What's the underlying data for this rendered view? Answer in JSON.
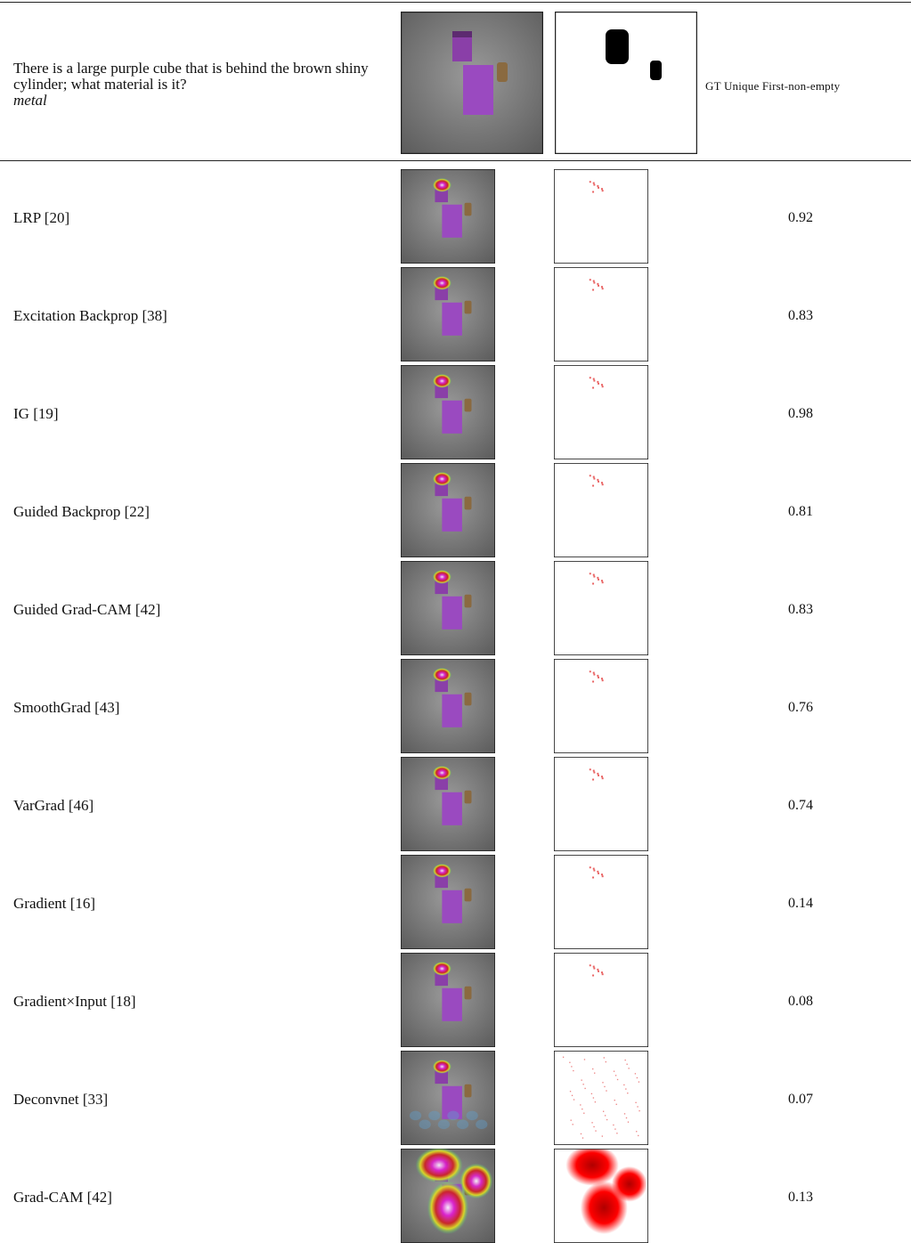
{
  "header": {
    "question": "There is a large purple cube that is behind the brown shiny cylinder; what material is it?",
    "answer": "metal",
    "metric": "GT Unique First-non-empty"
  },
  "rows": [
    {
      "method": "LRP [20]",
      "score": 0.92
    },
    {
      "method": "Excitation Backprop [38]",
      "score": 0.83
    },
    {
      "method": "IG [19]",
      "score": 0.98
    },
    {
      "method": "Guided Backprop [22]",
      "score": 0.81
    },
    {
      "method": "Guided Grad-CAM [42]",
      "score": 0.83
    },
    {
      "method": "SmoothGrad [43]",
      "score": 0.76
    },
    {
      "method": "VarGrad [46]",
      "score": 0.74
    },
    {
      "method": "Gradient [16]",
      "score": 0.14
    },
    {
      "method": "Gradient×Input [18]",
      "score": 0.08
    },
    {
      "method": "Deconvnet [33]",
      "score": 0.07
    },
    {
      "method": "Grad-CAM [42]",
      "score": 0.13
    }
  ]
}
